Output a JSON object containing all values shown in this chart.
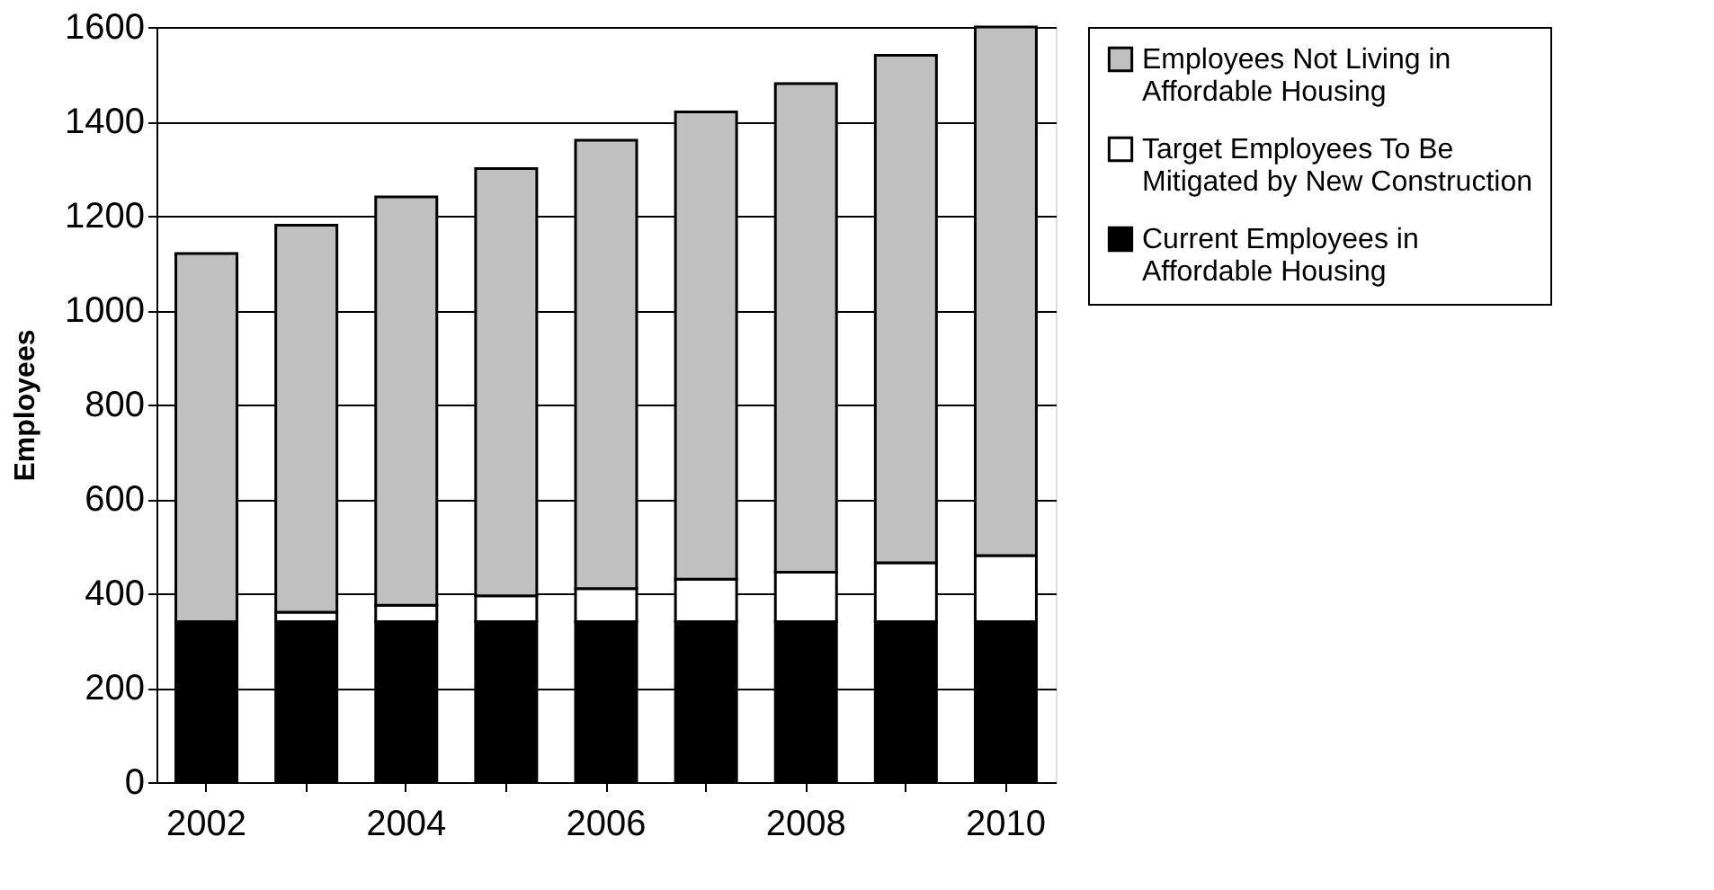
{
  "chart_data": {
    "type": "bar",
    "stacked": true,
    "ylabel": "Employees",
    "categories": [
      "2002",
      null,
      "2004",
      null,
      "2006",
      null,
      "2008",
      null,
      "2010"
    ],
    "series": [
      {
        "name": "Current Employees in Affordable Housing",
        "color": "#000000",
        "values": [
          340,
          340,
          340,
          340,
          340,
          340,
          340,
          340,
          340
        ]
      },
      {
        "name": "Target Employees To Be Mitigated by New Construction",
        "color": "#ffffff",
        "values": [
          0,
          20,
          35,
          55,
          70,
          90,
          105,
          125,
          140
        ]
      },
      {
        "name": "Employees Not Living in Affordable Housing",
        "color": "#c0c0c0",
        "values": [
          780,
          820,
          865,
          905,
          950,
          990,
          1035,
          1075,
          1120
        ]
      }
    ],
    "ylim": [
      0,
      1600
    ],
    "yticks": [
      0,
      200,
      400,
      600,
      800,
      1000,
      1200,
      1400,
      1600
    ],
    "grid": "y",
    "legend": "right"
  }
}
